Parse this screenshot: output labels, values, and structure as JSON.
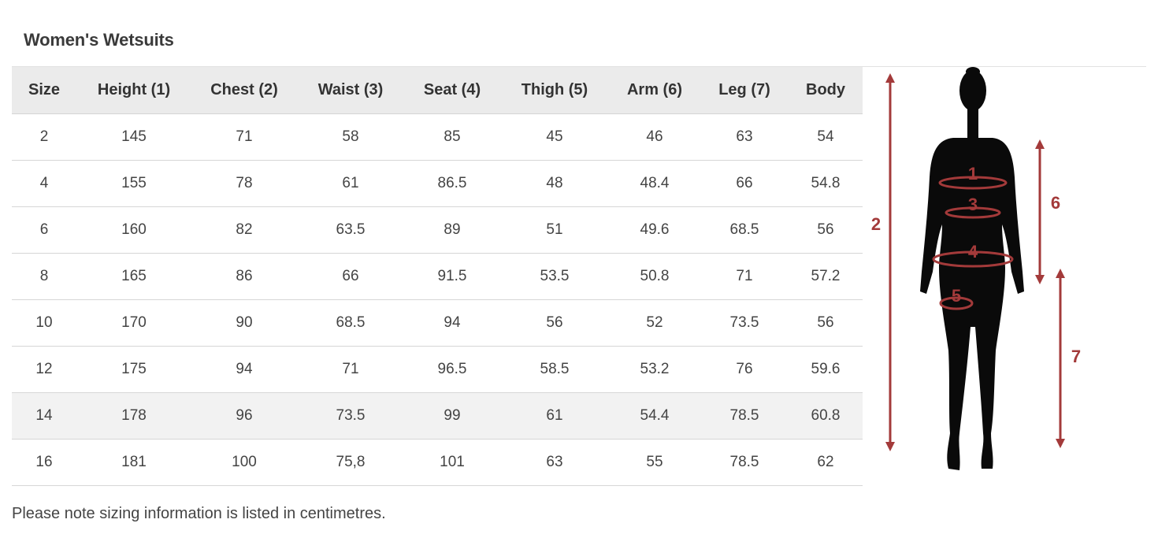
{
  "title": "Women's Wetsuits",
  "columns": [
    "Size",
    "Height (1)",
    "Chest (2)",
    "Waist (3)",
    "Seat (4)",
    "Thigh (5)",
    "Arm (6)",
    "Leg (7)",
    "Body"
  ],
  "rows": [
    [
      "2",
      "145",
      "71",
      "58",
      "85",
      "45",
      "46",
      "63",
      "54"
    ],
    [
      "4",
      "155",
      "78",
      "61",
      "86.5",
      "48",
      "48.4",
      "66",
      "54.8"
    ],
    [
      "6",
      "160",
      "82",
      "63.5",
      "89",
      "51",
      "49.6",
      "68.5",
      "56"
    ],
    [
      "8",
      "165",
      "86",
      "66",
      "91.5",
      "53.5",
      "50.8",
      "71",
      "57.2"
    ],
    [
      "10",
      "170",
      "90",
      "68.5",
      "94",
      "56",
      "52",
      "73.5",
      "56"
    ],
    [
      "12",
      "175",
      "94",
      "71",
      "96.5",
      "58.5",
      "53.2",
      "76",
      "59.6"
    ],
    [
      "14",
      "178",
      "96",
      "73.5",
      "99",
      "61",
      "54.4",
      "78.5",
      "60.8"
    ],
    [
      "16",
      "181",
      "100",
      "75,8",
      "101",
      "63",
      "55",
      "78.5",
      "62"
    ]
  ],
  "highlighted_row": 6,
  "note": "Please note sizing information is listed in centimetres.",
  "diagram": {
    "labels": [
      "1",
      "2",
      "3",
      "4",
      "5",
      "6",
      "7"
    ],
    "marker_color": "#a33a3a",
    "silhouette_color": "#0a0a0a"
  }
}
